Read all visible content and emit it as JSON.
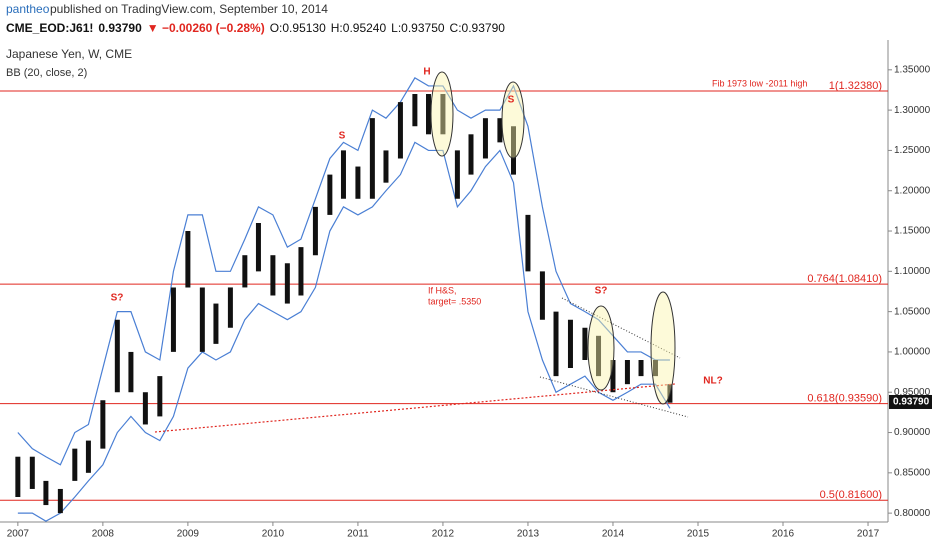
{
  "chart_data": {
    "type": "hilo",
    "header": {
      "user": "pantheo",
      "published": "published on TradingView.com, September 10, 2014",
      "quote": [
        "CME_EOD:J61!",
        "0.93790",
        "▼ −0.00260 (−0.28%)",
        "O:0.95130",
        "H:0.95240",
        "L:0.93750",
        "C:0.93790"
      ]
    },
    "title": "Japanese Yen, W, CME",
    "subtitle": "BB (20, close, 2)",
    "color": "#111111",
    "x": [
      2007,
      2007.17,
      2007.33,
      2007.5,
      2007.67,
      2007.83,
      2008,
      2008.17,
      2008.33,
      2008.5,
      2008.67,
      2008.83,
      2009,
      2009.17,
      2009.33,
      2009.5,
      2009.67,
      2009.83,
      2010,
      2010.17,
      2010.33,
      2010.5,
      2010.67,
      2010.83,
      2011,
      2011.17,
      2011.33,
      2011.5,
      2011.67,
      2011.83,
      2012,
      2012.17,
      2012.33,
      2012.5,
      2012.67,
      2012.83,
      2013,
      2013.17,
      2013.33,
      2013.5,
      2013.67,
      2013.83,
      2014,
      2014.17,
      2014.33,
      2014.5,
      2014.67
    ],
    "high": [
      0.87,
      0.87,
      0.84,
      0.83,
      0.88,
      0.89,
      0.94,
      1.04,
      1.0,
      0.95,
      0.97,
      1.08,
      1.15,
      1.08,
      1.06,
      1.08,
      1.12,
      1.16,
      1.12,
      1.11,
      1.13,
      1.18,
      1.22,
      1.25,
      1.23,
      1.29,
      1.25,
      1.31,
      1.32,
      1.32,
      1.32,
      1.25,
      1.27,
      1.29,
      1.29,
      1.28,
      1.17,
      1.1,
      1.05,
      1.04,
      1.03,
      1.02,
      0.99,
      0.99,
      0.99,
      0.99,
      0.96
    ],
    "low": [
      0.82,
      0.83,
      0.81,
      0.8,
      0.84,
      0.85,
      0.88,
      0.95,
      0.95,
      0.91,
      0.92,
      1.0,
      1.08,
      1.0,
      1.01,
      1.03,
      1.08,
      1.1,
      1.07,
      1.06,
      1.07,
      1.12,
      1.17,
      1.19,
      1.19,
      1.19,
      1.21,
      1.24,
      1.28,
      1.27,
      1.27,
      1.19,
      1.22,
      1.24,
      1.26,
      1.22,
      1.1,
      1.04,
      0.97,
      0.98,
      0.99,
      0.97,
      0.95,
      0.96,
      0.97,
      0.97,
      0.937
    ],
    "bands": {
      "color": "#4a7fd4",
      "upper": [
        0.9,
        0.88,
        0.87,
        0.86,
        0.9,
        0.91,
        0.98,
        1.05,
        1.05,
        1.0,
        0.99,
        1.1,
        1.17,
        1.17,
        1.1,
        1.1,
        1.14,
        1.18,
        1.17,
        1.13,
        1.14,
        1.19,
        1.24,
        1.26,
        1.25,
        1.3,
        1.29,
        1.31,
        1.34,
        1.33,
        1.33,
        1.3,
        1.29,
        1.3,
        1.3,
        1.33,
        1.28,
        1.18,
        1.1,
        1.06,
        1.05,
        1.04,
        1.02,
        1.0,
        1.0,
        0.99,
        0.99
      ],
      "lower": [
        0.8,
        0.8,
        0.79,
        0.8,
        0.82,
        0.84,
        0.86,
        0.9,
        0.92,
        0.9,
        0.89,
        0.92,
        0.98,
        1.0,
        0.99,
        1.0,
        1.04,
        1.06,
        1.05,
        1.04,
        1.05,
        1.08,
        1.15,
        1.18,
        1.17,
        1.18,
        1.2,
        1.22,
        1.26,
        1.25,
        1.25,
        1.18,
        1.2,
        1.23,
        1.25,
        1.21,
        1.05,
        0.99,
        0.95,
        0.96,
        0.97,
        0.95,
        0.94,
        0.95,
        0.96,
        0.96,
        0.93
      ]
    },
    "xlim": [
      2006.79,
      2017.235
    ],
    "xticks": [
      2007,
      2008,
      2009,
      2010,
      2011,
      2012,
      2013,
      2014,
      2015,
      2016,
      2017
    ],
    "ylim": [
      0.789,
      1.387
    ],
    "yticks": [
      {
        "value": 0.8,
        "label": "0.80000"
      },
      {
        "value": 0.85,
        "label": "0.85000"
      },
      {
        "value": 0.9,
        "label": "0.90000"
      },
      {
        "value": 0.95,
        "label": "0.95000"
      },
      {
        "value": 1.0,
        "label": "1.00000"
      },
      {
        "value": 1.05,
        "label": "1.05000"
      },
      {
        "value": 1.1,
        "label": "1.10000"
      },
      {
        "value": 1.15,
        "label": "1.15000"
      },
      {
        "value": 1.2,
        "label": "1.20000"
      },
      {
        "value": 1.25,
        "label": "1.25000"
      },
      {
        "value": 1.3,
        "label": "1.30000"
      },
      {
        "value": 1.35,
        "label": "1.35000"
      }
    ],
    "hline_color": "#e0261f",
    "hlines": [
      {
        "value": 1.3238,
        "label": "1(1.32380)"
      },
      {
        "value": 1.0841,
        "label": "0.764(1.08410)"
      },
      {
        "value": 0.9359,
        "label": "0.618(0.93590)"
      },
      {
        "value": 0.816,
        "label": "0.5(0.81600)"
      }
    ],
    "last": {
      "value": 0.9379,
      "label": "0.93790"
    },
    "annotations": [
      "Fib 1973 low -2011 high",
      "H",
      "S",
      "S",
      "S?",
      "S?",
      "NL?",
      "If H&S,",
      "target= .5350"
    ]
  }
}
